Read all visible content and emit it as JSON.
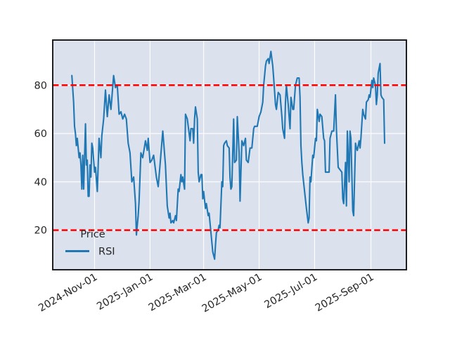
{
  "figure": {
    "background": "#ffffff",
    "axes_background": "#dbe1ed",
    "frame_color": "#151515",
    "grid_color": "#ffffff",
    "text_color": "#262626"
  },
  "chart_data": {
    "type": "line",
    "title": "",
    "xlabel": "",
    "ylabel": "",
    "grid": true,
    "x_unit": "days",
    "x_start_date": "2024-10-07",
    "xlim": [
      -21,
      368
    ],
    "ylim": [
      3.6,
      98.7
    ],
    "x_ticks": [
      {
        "offset": 25,
        "label": "2024-Nov-01"
      },
      {
        "offset": 86,
        "label": "2025-Jan-01"
      },
      {
        "offset": 145,
        "label": "2025-Mar-01"
      },
      {
        "offset": 206,
        "label": "2025-May-01"
      },
      {
        "offset": 267,
        "label": "2025-Jul-01"
      },
      {
        "offset": 329,
        "label": "2025-Sep-01"
      }
    ],
    "y_ticks": [
      20,
      40,
      60,
      80
    ],
    "hlines": [
      {
        "y": 80,
        "color": "#ff0000",
        "style": "dashed",
        "width": 2.5
      },
      {
        "y": 20,
        "color": "#ff0000",
        "style": "dashed",
        "width": 2.5
      }
    ],
    "legend": {
      "title": "Price",
      "position": "lower-left",
      "frame": false,
      "entries": [
        {
          "label": "RSI",
          "color": "#1f77b4",
          "width": 3
        }
      ]
    },
    "series": [
      {
        "name": "RSI",
        "color": "#1f77b4",
        "width": 2.1,
        "points": [
          [
            0,
            84
          ],
          [
            2,
            73
          ],
          [
            3,
            63
          ],
          [
            4,
            60
          ],
          [
            5,
            55
          ],
          [
            6,
            58
          ],
          [
            8,
            50
          ],
          [
            9,
            52
          ],
          [
            10,
            47
          ],
          [
            11,
            37
          ],
          [
            12,
            51
          ],
          [
            13,
            37
          ],
          [
            15,
            64
          ],
          [
            16,
            47
          ],
          [
            17,
            49
          ],
          [
            18,
            34
          ],
          [
            19,
            34
          ],
          [
            20,
            47
          ],
          [
            21,
            42
          ],
          [
            22,
            56
          ],
          [
            23,
            54
          ],
          [
            25,
            44
          ],
          [
            26,
            46
          ],
          [
            28,
            36
          ],
          [
            30,
            58
          ],
          [
            32,
            50
          ],
          [
            33,
            59
          ],
          [
            35,
            66
          ],
          [
            37,
            78
          ],
          [
            39,
            67
          ],
          [
            41,
            76
          ],
          [
            43,
            70
          ],
          [
            46,
            84
          ],
          [
            48,
            79
          ],
          [
            50,
            80
          ],
          [
            52,
            68
          ],
          [
            54,
            69
          ],
          [
            56,
            66
          ],
          [
            58,
            68
          ],
          [
            60,
            66
          ],
          [
            62,
            56
          ],
          [
            64,
            52
          ],
          [
            66,
            40
          ],
          [
            68,
            42
          ],
          [
            70,
            31
          ],
          [
            71,
            18
          ],
          [
            73,
            26
          ],
          [
            74,
            32
          ],
          [
            76,
            52
          ],
          [
            78,
            50
          ],
          [
            81,
            57
          ],
          [
            83,
            53
          ],
          [
            84,
            58
          ],
          [
            86,
            48
          ],
          [
            88,
            49
          ],
          [
            90,
            51
          ],
          [
            93,
            42
          ],
          [
            95,
            38
          ],
          [
            97,
            47
          ],
          [
            100,
            61
          ],
          [
            103,
            47
          ],
          [
            105,
            30
          ],
          [
            107,
            25
          ],
          [
            108,
            27
          ],
          [
            109,
            23
          ],
          [
            111,
            24
          ],
          [
            112,
            23
          ],
          [
            114,
            26
          ],
          [
            115,
            24
          ],
          [
            117,
            37
          ],
          [
            118,
            36
          ],
          [
            120,
            43
          ],
          [
            121,
            40
          ],
          [
            122,
            42
          ],
          [
            124,
            37
          ],
          [
            125,
            68
          ],
          [
            127,
            66
          ],
          [
            128,
            63
          ],
          [
            130,
            57
          ],
          [
            131,
            62
          ],
          [
            133,
            62
          ],
          [
            134,
            56
          ],
          [
            135,
            66
          ],
          [
            136,
            71
          ],
          [
            138,
            66
          ],
          [
            139,
            44
          ],
          [
            140,
            40
          ],
          [
            142,
            43
          ],
          [
            143,
            43
          ],
          [
            144,
            33
          ],
          [
            145,
            36
          ],
          [
            147,
            29
          ],
          [
            148,
            31
          ],
          [
            150,
            26
          ],
          [
            151,
            27
          ],
          [
            152,
            23
          ],
          [
            154,
            15
          ],
          [
            155,
            11
          ],
          [
            157,
            8
          ],
          [
            158,
            14
          ],
          [
            159,
            19
          ],
          [
            161,
            20
          ],
          [
            162,
            22
          ],
          [
            163,
            21
          ],
          [
            165,
            40
          ],
          [
            166,
            38
          ],
          [
            167,
            55
          ],
          [
            168,
            56
          ],
          [
            170,
            57
          ],
          [
            171,
            55
          ],
          [
            173,
            54
          ],
          [
            174,
            42
          ],
          [
            175,
            37
          ],
          [
            176,
            38
          ],
          [
            178,
            66
          ],
          [
            179,
            48
          ],
          [
            181,
            49
          ],
          [
            182,
            67
          ],
          [
            184,
            52
          ],
          [
            185,
            32
          ],
          [
            187,
            57
          ],
          [
            189,
            55
          ],
          [
            191,
            58
          ],
          [
            192,
            49
          ],
          [
            194,
            48
          ],
          [
            196,
            54
          ],
          [
            198,
            54
          ],
          [
            200,
            62
          ],
          [
            201,
            63
          ],
          [
            204,
            63
          ],
          [
            206,
            67
          ],
          [
            208,
            69
          ],
          [
            210,
            73
          ],
          [
            211,
            80
          ],
          [
            213,
            88
          ],
          [
            214,
            90
          ],
          [
            216,
            91
          ],
          [
            217,
            89
          ],
          [
            219,
            94
          ],
          [
            221,
            88
          ],
          [
            222,
            83
          ],
          [
            224,
            72
          ],
          [
            225,
            70
          ],
          [
            227,
            77
          ],
          [
            229,
            76
          ],
          [
            231,
            67
          ],
          [
            232,
            62
          ],
          [
            234,
            58
          ],
          [
            235,
            73
          ],
          [
            236,
            80
          ],
          [
            238,
            72
          ],
          [
            240,
            62
          ],
          [
            241,
            75
          ],
          [
            243,
            70
          ],
          [
            244,
            70
          ],
          [
            246,
            80
          ],
          [
            248,
            83
          ],
          [
            250,
            83
          ],
          [
            251,
            75
          ],
          [
            252,
            55
          ],
          [
            253,
            48
          ],
          [
            254,
            43
          ],
          [
            256,
            36
          ],
          [
            258,
            29
          ],
          [
            260,
            23
          ],
          [
            261,
            25
          ],
          [
            262,
            42
          ],
          [
            263,
            40
          ],
          [
            265,
            51
          ],
          [
            266,
            50
          ],
          [
            268,
            58
          ],
          [
            269,
            57
          ],
          [
            270,
            70
          ],
          [
            272,
            65
          ],
          [
            273,
            68
          ],
          [
            275,
            67
          ],
          [
            277,
            58
          ],
          [
            278,
            57
          ],
          [
            279,
            44
          ],
          [
            283,
            44
          ],
          [
            284,
            58
          ],
          [
            286,
            61
          ],
          [
            288,
            61
          ],
          [
            290,
            76
          ],
          [
            291,
            62
          ],
          [
            293,
            46
          ],
          [
            295,
            45
          ],
          [
            297,
            44
          ],
          [
            298,
            33
          ],
          [
            299,
            31
          ],
          [
            301,
            48
          ],
          [
            302,
            30
          ],
          [
            303,
            61
          ],
          [
            305,
            40
          ],
          [
            306,
            61
          ],
          [
            307,
            58
          ],
          [
            309,
            28
          ],
          [
            310,
            26
          ],
          [
            312,
            56
          ],
          [
            313,
            54
          ],
          [
            314,
            53
          ],
          [
            316,
            57
          ],
          [
            317,
            54
          ],
          [
            318,
            58
          ],
          [
            320,
            70
          ],
          [
            321,
            68
          ],
          [
            323,
            66
          ],
          [
            324,
            73
          ],
          [
            326,
            74
          ],
          [
            327,
            76
          ],
          [
            328,
            75
          ],
          [
            330,
            82
          ],
          [
            331,
            79
          ],
          [
            332,
            83
          ],
          [
            334,
            80
          ],
          [
            335,
            72
          ],
          [
            336,
            76
          ],
          [
            337,
            85
          ],
          [
            339,
            89
          ],
          [
            340,
            76
          ],
          [
            341,
            75
          ],
          [
            343,
            74
          ],
          [
            344,
            56
          ]
        ]
      }
    ]
  }
}
